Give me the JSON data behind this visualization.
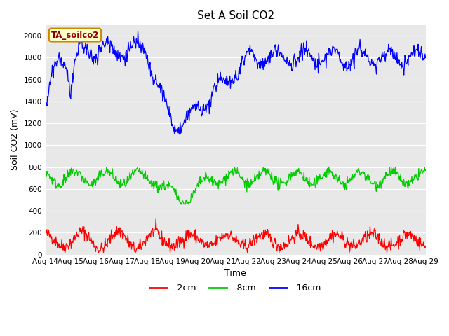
{
  "title": "Set A Soil CO2",
  "xlabel": "Time",
  "ylabel": "Soil CO2 (mV)",
  "legend_label": "TA_soilco2",
  "series_labels": [
    "-2cm",
    "-8cm",
    "-16cm"
  ],
  "series_colors": [
    "#ff0000",
    "#00cc00",
    "#0000ff"
  ],
  "ylim": [
    0,
    2100
  ],
  "yticks": [
    0,
    200,
    400,
    600,
    800,
    1000,
    1200,
    1400,
    1600,
    1800,
    2000
  ],
  "xtick_labels": [
    "Aug 14",
    "Aug 15",
    "Aug 16",
    "Aug 17",
    "Aug 18",
    "Aug 19",
    "Aug 20",
    "Aug 21",
    "Aug 22",
    "Aug 23",
    "Aug 24",
    "Aug 25",
    "Aug 26",
    "Aug 27",
    "Aug 28",
    "Aug 29"
  ],
  "fig_bg_color": "#ffffff",
  "plot_bg_color": "#e8e8e8",
  "grid_color": "#ffffff",
  "legend_box_facecolor": "#ffffcc",
  "legend_box_edgecolor": "#cc8800"
}
